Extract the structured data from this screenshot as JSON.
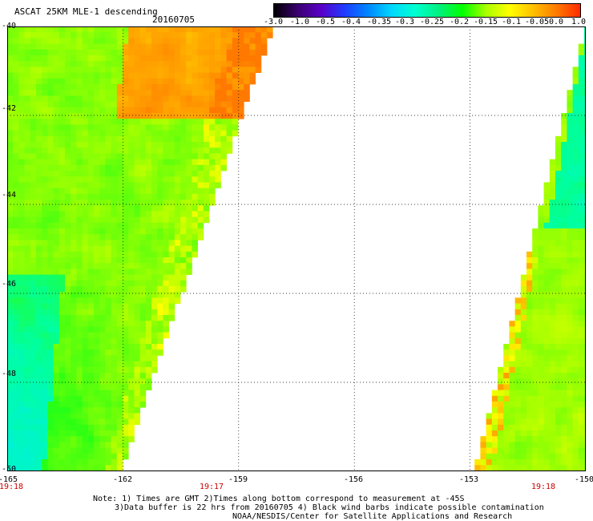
{
  "title": "ASCAT 25KM MLE-1 descending",
  "date": "20160705",
  "colorbar": {
    "labels": [
      "-3.0",
      "-1.0",
      "-0.5",
      "-0.4",
      "-0.35",
      "-0.3",
      "-0.25",
      "-0.2",
      "-0.15",
      "-0.1",
      "-0.05",
      "0.0",
      "1.0"
    ],
    "colors": [
      "#000000",
      "#3a0070",
      "#5a00c8",
      "#1e3cff",
      "#0088ff",
      "#00d8ff",
      "#00ffd0",
      "#00f080",
      "#00ff00",
      "#a8ff00",
      "#ffff00",
      "#ffc000",
      "#ff7a00",
      "#ff2a00"
    ]
  },
  "axes": {
    "lon_min": -165,
    "lon_max": -150,
    "lat_min": -50,
    "lat_max": -40,
    "x_ticks": [
      "-165",
      "-162",
      "-159",
      "-156",
      "-153",
      "-150"
    ],
    "y_ticks": [
      "-40",
      "-42",
      "-44",
      "-46",
      "-48",
      "-50"
    ],
    "grid": "dotted"
  },
  "times": [
    "19:18",
    "19:17",
    "19:18"
  ],
  "notes": [
    "Note: 1) Times are GMT 2)Times along bottom correspond to measurement at -45S",
    "3)Data buffer is 22 hrs from 20160705 4) Black wind barbs indicate possible contamination",
    "NOAA/NESDIS/Center for Satellite Applications and Research"
  ]
}
